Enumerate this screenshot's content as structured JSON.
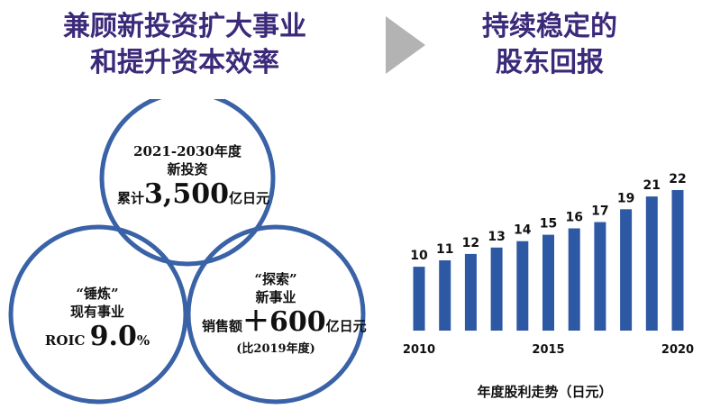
{
  "headings": {
    "left_line1": "兼顾新投资扩大事业",
    "left_line2": "和提升资本效率",
    "right_line1": "持续稳定的",
    "right_line2": "股东回报"
  },
  "circles": {
    "top": {
      "line1": "2021-2030年度",
      "line2": "新投资",
      "prefix": "累计",
      "amount": "3,500",
      "unit": "亿日元"
    },
    "left": {
      "line1": "“锤炼”",
      "line2": "现有事业",
      "prefix": "ROIC ",
      "value": "9.0",
      "unit": "%"
    },
    "right": {
      "line1": "“探索”",
      "line2": "新事业",
      "prefix": "销售额",
      "amount": "＋600",
      "unit": "亿日元",
      "note": "(比2019年度)"
    }
  },
  "colors": {
    "heading": "#3b2a7a",
    "circle_stroke": "#3a62a7",
    "arrow": "#b3b3b3",
    "bar": "#2d58a4"
  },
  "chart_data": {
    "type": "bar",
    "x": [
      2010,
      2011,
      2012,
      2013,
      2014,
      2015,
      2016,
      2017,
      2018,
      2019,
      2020
    ],
    "values": [
      10,
      11,
      12,
      13,
      14,
      15,
      16,
      17,
      19,
      21,
      22
    ],
    "data_labels": [
      "10",
      "11",
      "12",
      "13",
      "14",
      "15",
      "16",
      "17",
      "19",
      "21",
      "22"
    ],
    "x_tick_labels": [
      {
        "x": 2010,
        "label": "2010"
      },
      {
        "x": 2015,
        "label": "2015"
      },
      {
        "x": 2020,
        "label": "2020"
      }
    ],
    "xlabel": "年度股利走势（日元）",
    "ylim": [
      0,
      22
    ],
    "grid": false
  }
}
